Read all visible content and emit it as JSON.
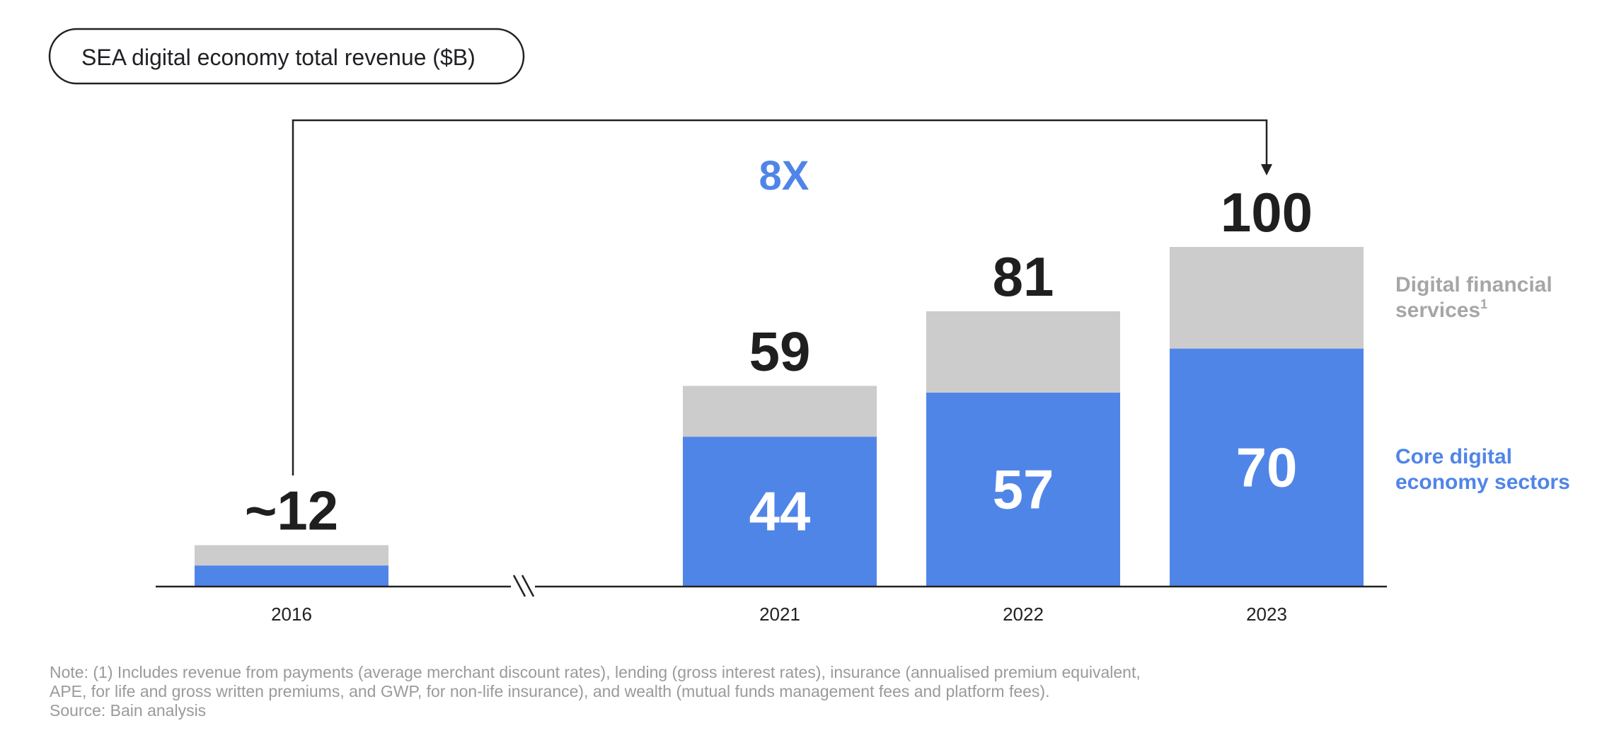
{
  "chart_data": {
    "type": "bar",
    "stacked": true,
    "title": "SEA digital economy total revenue ($B)",
    "categories": [
      "2016",
      "2021",
      "2022",
      "2023"
    ],
    "series": [
      {
        "name": "Core digital economy sectors",
        "values": [
          6,
          44,
          57,
          70
        ],
        "value_labels": [
          "",
          "44",
          "57",
          "70"
        ],
        "color": "#5085E8"
      },
      {
        "name": "Digital financial services",
        "name_superscript": "1",
        "values": [
          6,
          15,
          24,
          30
        ],
        "value_labels": [
          "",
          "",
          "",
          ""
        ],
        "color": "#CCCCCC"
      }
    ],
    "totals": [
      12,
      59,
      81,
      100
    ],
    "total_labels": [
      "~12",
      "59",
      "81",
      "100"
    ],
    "axis_break": "//",
    "ylim": [
      0,
      100
    ],
    "grid": false,
    "legend_position": "right",
    "annotation": {
      "text": "8X",
      "from_category": "2016",
      "to_category": "2023",
      "color": "#5085E8"
    }
  },
  "notes": {
    "note_line1": "Note: (1) Includes revenue from payments (average merchant discount rates), lending (gross interest rates), insurance (annualised premium equivalent,",
    "note_line2": "APE, for life and gross written premiums, and GWP, for non-life insurance), and wealth (mutual funds management fees and platform fees).",
    "source": "Source: Bain analysis"
  }
}
